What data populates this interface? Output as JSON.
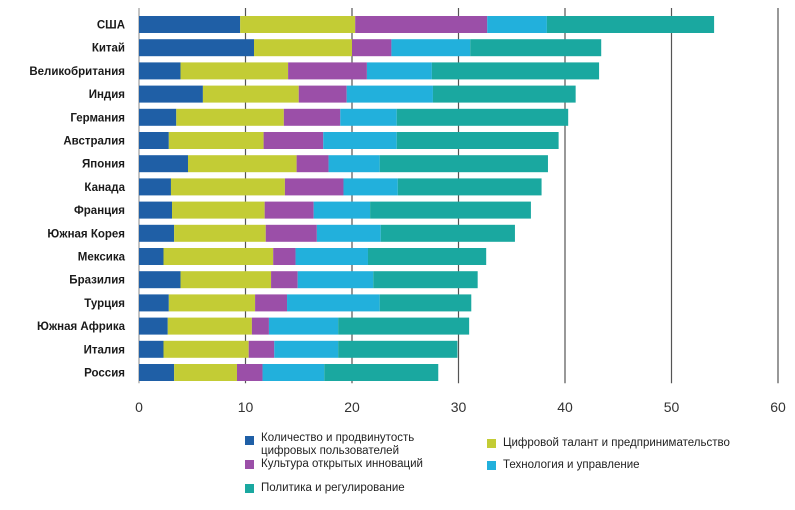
{
  "chart_data": {
    "type": "bar",
    "orientation": "horizontal",
    "stacked": true,
    "title": "",
    "xlabel": "",
    "ylabel": "",
    "xlim": [
      0,
      60
    ],
    "xticks": [
      "0",
      "10",
      "20",
      "30",
      "40",
      "50",
      "60"
    ],
    "grid": true,
    "categories": [
      "США",
      "Китай",
      "Великобритания",
      "Индия",
      "Германия",
      "Австралия",
      "Япония",
      "Канада",
      "Франция",
      "Южная Корея",
      "Мексика",
      "Бразилия",
      "Турция",
      "Южная Африка",
      "Италия",
      "Россия"
    ],
    "series": [
      {
        "name": "Количество и продвинутость цифровых пользователей",
        "color": "#1f5fa6",
        "values": [
          9.5,
          10.8,
          3.9,
          6.0,
          3.5,
          2.8,
          4.6,
          3.0,
          3.1,
          3.3,
          2.3,
          3.9,
          2.8,
          2.7,
          2.3,
          3.3
        ]
      },
      {
        "name": "Цифровой талант и предпринимательство",
        "color": "#c3cc35",
        "values": [
          10.8,
          9.2,
          10.1,
          9.0,
          10.1,
          8.9,
          10.2,
          10.7,
          8.7,
          8.6,
          10.3,
          8.5,
          8.1,
          7.9,
          8.0,
          5.9
        ]
      },
      {
        "name": "Культура открытых инноваций",
        "color": "#9b4fa8",
        "values": [
          12.4,
          3.7,
          7.4,
          4.5,
          5.3,
          5.6,
          3.0,
          5.5,
          4.6,
          4.8,
          2.1,
          2.5,
          3.0,
          1.6,
          2.4,
          2.4
        ]
      },
      {
        "name": "Технология и управление",
        "color": "#22b0dc",
        "values": [
          5.6,
          7.4,
          6.1,
          8.1,
          5.3,
          6.9,
          4.8,
          5.1,
          5.3,
          6.0,
          6.8,
          7.1,
          8.7,
          6.5,
          6.0,
          5.8
        ]
      },
      {
        "name": "Политика и регулирование",
        "color": "#1aa8a0",
        "values": [
          15.7,
          12.3,
          15.7,
          13.4,
          16.1,
          15.2,
          15.8,
          13.5,
          15.1,
          12.6,
          11.1,
          9.8,
          8.6,
          12.3,
          11.2,
          10.7
        ]
      }
    ],
    "legend_position": "bottom"
  },
  "legend": {
    "items": [
      {
        "label_lines": [
          "Количество и продвинутость",
          "цифровых пользователей"
        ]
      },
      {
        "label_lines": [
          "Цифровой талант и предпринимательство"
        ]
      },
      {
        "label_lines": [
          "Культура открытых инноваций"
        ]
      },
      {
        "label_lines": [
          "Технология и управление"
        ]
      },
      {
        "label_lines": [
          "Политика и регулирование"
        ]
      }
    ]
  }
}
